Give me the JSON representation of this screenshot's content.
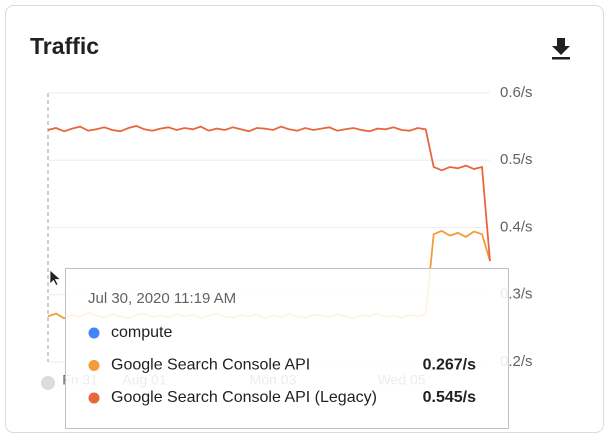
{
  "chart_data": {
    "type": "line",
    "title": "Traffic",
    "ylim": [
      0.2,
      0.6
    ],
    "yticks": [
      {
        "value": 0.2,
        "label": "0.2/s"
      },
      {
        "value": 0.3,
        "label": "0.3/s"
      },
      {
        "value": 0.4,
        "label": "0.4/s"
      },
      {
        "value": 0.5,
        "label": "0.5/s"
      },
      {
        "value": 0.6,
        "label": "0.6/s"
      }
    ],
    "grid": true,
    "categories": [
      null,
      null,
      null,
      null,
      "Fri 31",
      null,
      null,
      null,
      null,
      null,
      null,
      null,
      "Aug 01",
      null,
      null,
      null,
      null,
      null,
      null,
      null,
      null,
      null,
      null,
      null,
      null,
      null,
      null,
      null,
      "Mon 03",
      null,
      null,
      null,
      null,
      null,
      null,
      null,
      null,
      null,
      null,
      null,
      null,
      null,
      null,
      null,
      "Wed 05",
      null,
      null,
      null,
      null,
      null,
      null,
      null,
      null,
      null,
      null,
      null
    ],
    "series": [
      {
        "name": "compute",
        "color": "#4285f4",
        "values": [
          null,
          null,
          null,
          null,
          null,
          null,
          null,
          null,
          null,
          null,
          null,
          null,
          null,
          null,
          null,
          null,
          null,
          null,
          null,
          null,
          null,
          null,
          null,
          null,
          null,
          null,
          null,
          null,
          null,
          null,
          null,
          null,
          null,
          null,
          null,
          null,
          null,
          null,
          null,
          null,
          null,
          null,
          null,
          null,
          null,
          null,
          null,
          null,
          null,
          null,
          null,
          null,
          null,
          null,
          null,
          null
        ]
      },
      {
        "name": "Google Search Console API",
        "color": "#f29d38",
        "tooltip_value": "0.267/s",
        "values": [
          0.268,
          0.272,
          0.265,
          0.27,
          0.267,
          0.273,
          0.269,
          0.266,
          0.271,
          0.268,
          0.265,
          0.27,
          0.272,
          0.267,
          0.269,
          0.266,
          0.271,
          0.268,
          0.27,
          0.265,
          0.269,
          0.272,
          0.267,
          0.266,
          0.27,
          0.268,
          0.271,
          0.265,
          0.269,
          0.267,
          0.272,
          0.268,
          0.266,
          0.27,
          0.269,
          0.267,
          0.271,
          0.268,
          0.265,
          0.27,
          0.268,
          0.272,
          0.267,
          0.269,
          0.266,
          0.27,
          0.268,
          0.271,
          0.39,
          0.395,
          0.388,
          0.392,
          0.386,
          0.394,
          0.39,
          0.35
        ]
      },
      {
        "name": "Google Search Console API (Legacy)",
        "color": "#e8663d",
        "tooltip_value": "0.545/s",
        "values": [
          0.545,
          0.548,
          0.543,
          0.547,
          0.55,
          0.544,
          0.546,
          0.549,
          0.545,
          0.543,
          0.548,
          0.551,
          0.546,
          0.544,
          0.547,
          0.549,
          0.545,
          0.548,
          0.546,
          0.55,
          0.544,
          0.547,
          0.545,
          0.549,
          0.546,
          0.543,
          0.548,
          0.547,
          0.545,
          0.55,
          0.546,
          0.544,
          0.548,
          0.545,
          0.547,
          0.549,
          0.544,
          0.546,
          0.548,
          0.545,
          0.543,
          0.547,
          0.546,
          0.549,
          0.545,
          0.544,
          0.548,
          0.546,
          0.49,
          0.485,
          0.49,
          0.488,
          0.492,
          0.487,
          0.49,
          0.35
        ]
      }
    ],
    "tooltip_title": "Jul 30, 2020 11:19 AM"
  }
}
